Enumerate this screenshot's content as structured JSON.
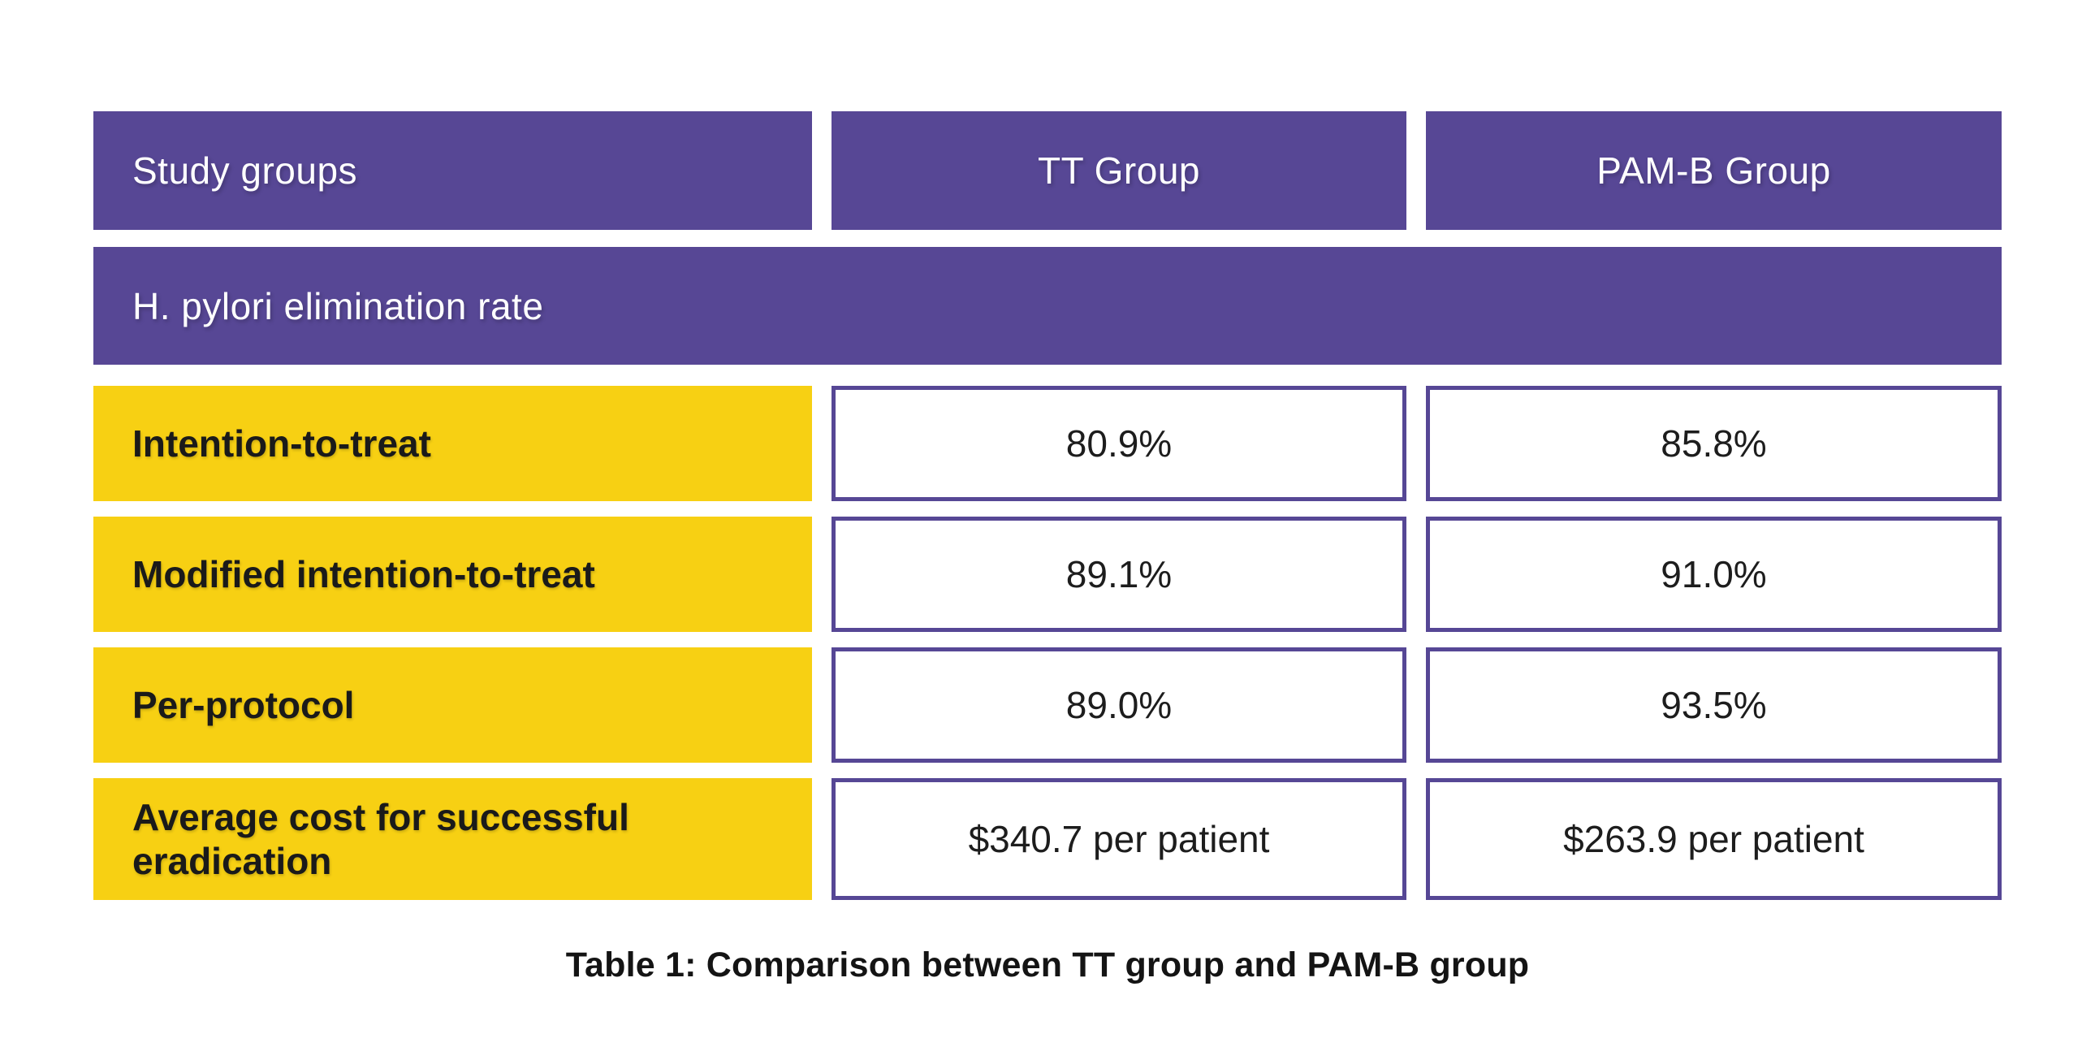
{
  "colors": {
    "purple": "#574795",
    "yellow": "#f7d013",
    "cell_border": "#564795",
    "header_text": "#ffffff",
    "label_text": "#1a1a1a",
    "value_text": "#1d1d1d",
    "caption_text": "#141414",
    "background": "#ffffff"
  },
  "table": {
    "header": {
      "col1": "Study groups",
      "col2": "TT Group",
      "col3": "PAM-B Group"
    },
    "section": "H. pylori elimination rate",
    "rows": [
      {
        "label": "Intention-to-treat",
        "tt": "80.9%",
        "pamb": "85.8%"
      },
      {
        "label": "Modified intention-to-treat",
        "tt": "89.1%",
        "pamb": "91.0%"
      },
      {
        "label": "Per-protocol",
        "tt": "89.0%",
        "pamb": "93.5%"
      },
      {
        "label": "Average cost for successful eradication",
        "tt": "$340.7 per patient",
        "pamb": "$263.9 per patient"
      }
    ],
    "caption": "Table 1: Comparison between TT group and PAM-B group"
  },
  "chart_data": {
    "type": "table",
    "title": "Table 1: Comparison between TT group and PAM-B group",
    "columns": [
      "Study groups",
      "TT Group",
      "PAM-B Group"
    ],
    "section_header": "H. pylori elimination rate",
    "rows": [
      [
        "Intention-to-treat",
        "80.9%",
        "85.8%"
      ],
      [
        "Modified intention-to-treat",
        "89.1%",
        "91.0%"
      ],
      [
        "Per-protocol",
        "89.0%",
        "93.5%"
      ],
      [
        "Average cost for successful eradication",
        "$340.7 per patient",
        "$263.9 per patient"
      ]
    ],
    "numeric": {
      "elimination_rate_percent": {
        "categories": [
          "Intention-to-treat",
          "Modified intention-to-treat",
          "Per-protocol"
        ],
        "series": [
          {
            "name": "TT Group",
            "values": [
              80.9,
              89.1,
              89.0
            ]
          },
          {
            "name": "PAM-B Group",
            "values": [
              85.8,
              91.0,
              93.5
            ]
          }
        ]
      },
      "average_cost_usd_per_patient": {
        "TT Group": 340.7,
        "PAM-B Group": 263.9
      }
    }
  }
}
